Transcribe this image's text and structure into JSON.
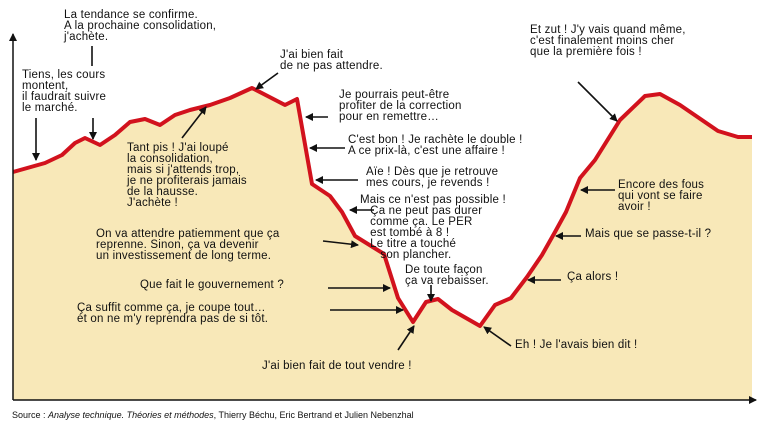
{
  "colors": {
    "curve": "#d2121d",
    "fill": "#f8e8b8",
    "axis": "#111111",
    "arrow": "#111111"
  },
  "annotations": [
    {
      "id": "trend",
      "text": "La tendance se confirme.\nA la prochaine consolidation,\nj'achète."
    },
    {
      "id": "rising",
      "text": "Tiens, les cours\nmontent,\nil faudrait suivre\nle marché."
    },
    {
      "id": "waited",
      "text": "J'ai bien fait\nde ne pas attendre."
    },
    {
      "id": "missed",
      "text": "Tant pis ! J'ai loupé\nla consolidation,\nmais si j'attends trop,\nje ne profiterais jamais\nde la hausse.\nJ'achète !"
    },
    {
      "id": "correction",
      "text": "Je pourrais peut-être\nprofiter de la correction\npour en remettre…"
    },
    {
      "id": "double",
      "text": "C'est bon ! Je rachète le double !\nA ce prix-là, c'est une affaire !"
    },
    {
      "id": "ouch",
      "text": "Aïe ! Dès que je retrouve\nmes cours, je revends !"
    },
    {
      "id": "impossible",
      "text": "Mais ce n'est pas possible !\n   Ça ne peut pas durer\n   comme ça. Le PER\n   est tombé à 8 !\n   Le titre a touché\n      son plancher."
    },
    {
      "id": "wait_patiently",
      "text": "On va attendre patiemment que ça\nreprenne. Sinon, ça va devenir\nun investissement de long terme."
    },
    {
      "id": "rebaisser",
      "text": "De toute façon\nça va rebaisser."
    },
    {
      "id": "government",
      "text": "Que fait le gouvernement ?"
    },
    {
      "id": "enough",
      "text": "Ça suffit comme ça, je coupe tout…\nét on ne m'y reprendra pas de si tôt."
    },
    {
      "id": "sold_all",
      "text": "J'ai bien fait de tout vendre !"
    },
    {
      "id": "told_you",
      "text": "Eh ! Je l'avais bien dit !"
    },
    {
      "id": "damn",
      "text": "Et zut ! J'y vais quand même,\nc'est finalement moins cher\nque la première fois !"
    },
    {
      "id": "fools",
      "text": "Encore des fous\nqui vont se faire\navoir !"
    },
    {
      "id": "what",
      "text": "Mais que se passe-t-il ?"
    },
    {
      "id": "wow",
      "text": "Ça alors !"
    }
  ],
  "source": {
    "prefix": "Source : ",
    "title": "Analyse technique. Théories et méthodes",
    "authors": ", Thierry Béchu, Eric Bertrand et Julien Nebenzhal"
  }
}
